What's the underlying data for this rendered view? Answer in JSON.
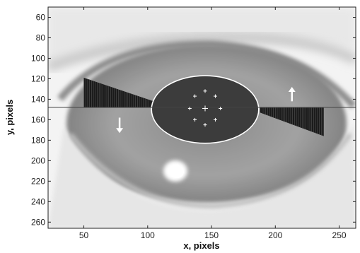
{
  "chart_data": {
    "type": "scatter",
    "title": "",
    "xlabel": "x, pixels",
    "ylabel": "y, pixels",
    "xlim": [
      22,
      263
    ],
    "ylim": [
      50,
      266
    ],
    "y_axis_inverted": true,
    "grid": false,
    "x_ticks": [
      50,
      100,
      150,
      200,
      250
    ],
    "y_ticks": [
      60,
      80,
      100,
      120,
      140,
      160,
      180,
      200,
      220,
      240,
      260
    ],
    "background": "grayscale photograph of an eye",
    "horizontal_line_y": 148,
    "pupil_boundary": {
      "center": [
        145,
        150
      ],
      "semi_axis_x": 42,
      "semi_axis_y": 33
    },
    "pupil_cross_points": [
      [
        145,
        149
      ],
      [
        145,
        132
      ],
      [
        145,
        165
      ],
      [
        133,
        149
      ],
      [
        157,
        149
      ],
      [
        137,
        137
      ],
      [
        153,
        137
      ],
      [
        137,
        160
      ],
      [
        153,
        160
      ]
    ],
    "left_lid_band": {
      "x_start": 50,
      "x_end": 107,
      "outer_top_y": 119,
      "outer_bottom_y": 148,
      "inner_top_y": 143,
      "inner_bottom_y": 148
    },
    "right_lid_band": {
      "x_start": 188,
      "x_end": 238,
      "inner_top_y": 148,
      "inner_bottom_y": 153,
      "outer_top_y": 148,
      "outer_bottom_y": 176
    },
    "arrows": [
      {
        "direction": "down",
        "x": 78,
        "y_from": 158,
        "y_to": 173
      },
      {
        "direction": "up",
        "x": 213,
        "y_from": 142,
        "y_to": 128
      }
    ],
    "colors": {
      "bands": "#1a1a1a",
      "pupil": "#3c3c3c",
      "pupil_outline": "#ffffff",
      "arrows": "#ffffff",
      "line": "#444444"
    }
  }
}
